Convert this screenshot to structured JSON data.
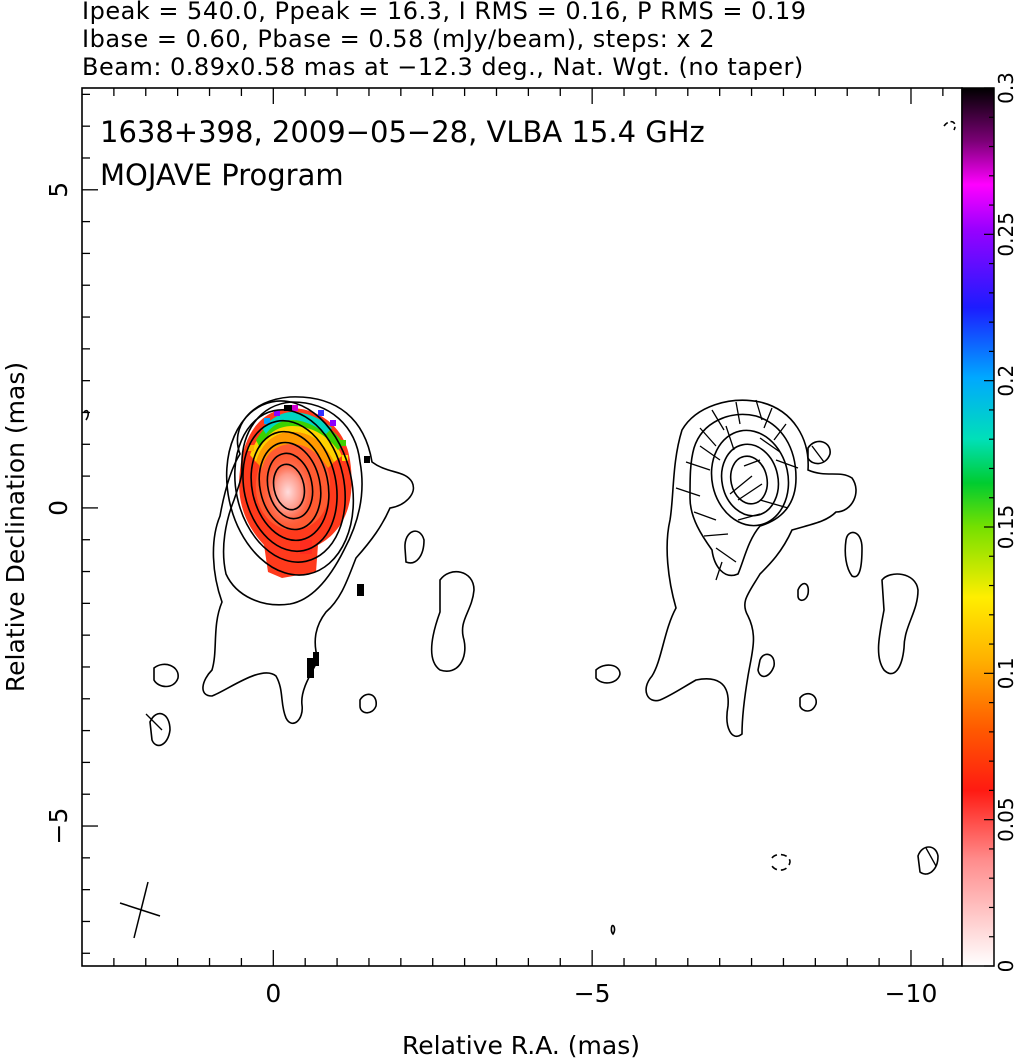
{
  "header": {
    "line1": "Ipeak = 540.0, Ppeak = 16.3, I RMS = 0.16, P RMS = 0.19",
    "line2": "Ibase = 0.60, Pbase = 0.58 (mJy/beam), steps: x 2",
    "line3": "Beam: 0.89x0.58 mas at −12.3 deg., Nat. Wgt. (no taper)"
  },
  "chart_data": {
    "type": "heatmap",
    "title": "1638+398, 2009−05−28, VLBA 15.4 GHz",
    "subtitle": "MOJAVE Program",
    "xlabel": "Relative R.A. (mas)",
    "ylabel": "Relative Declination (mas)",
    "xlim": [
      3.0,
      -10.8
    ],
    "ylim": [
      -7.2,
      6.6
    ],
    "x_ticks": [
      {
        "v": 0,
        "label": "0"
      },
      {
        "v": -5,
        "label": "−5"
      },
      {
        "v": -10,
        "label": "−10"
      }
    ],
    "y_ticks": [
      {
        "v": 5,
        "label": "5"
      },
      {
        "v": 0,
        "label": "0"
      },
      {
        "v": -5,
        "label": "−5"
      }
    ],
    "colorbar": {
      "range": [
        0,
        0.3
      ],
      "ticks": [
        {
          "v": 0,
          "label": "0"
        },
        {
          "v": 0.05,
          "label": "0.05"
        },
        {
          "v": 0.1,
          "label": "0.1"
        },
        {
          "v": 0.15,
          "label": "0.15"
        },
        {
          "v": 0.2,
          "label": "0.2"
        },
        {
          "v": 0.25,
          "label": "0.25"
        },
        {
          "v": 0.3,
          "label": "0.3"
        }
      ]
    },
    "fractional_polarization": [
      {
        "x": 0.15,
        "y": 1.45,
        "v": 0.29
      },
      {
        "x": 0.35,
        "y": 1.4,
        "v": 0.27
      },
      {
        "x": -0.05,
        "y": 1.38,
        "v": 0.26
      },
      {
        "x": 0.55,
        "y": 1.3,
        "v": 0.24
      },
      {
        "x": 0.8,
        "y": 1.2,
        "v": 0.19
      },
      {
        "x": -0.2,
        "y": 1.2,
        "v": 0.2
      },
      {
        "x": 1.05,
        "y": 1.05,
        "v": 0.16
      },
      {
        "x": 0.2,
        "y": 1.15,
        "v": 0.17
      },
      {
        "x": -0.35,
        "y": 1.0,
        "v": 0.16
      },
      {
        "x": 0.5,
        "y": 1.0,
        "v": 0.14
      },
      {
        "x": 1.15,
        "y": 0.8,
        "v": 0.12
      },
      {
        "x": 0.25,
        "y": 0.05,
        "v": 0.01
      },
      {
        "x": 0.2,
        "y": -0.4,
        "v": 0.02
      },
      {
        "x": 0.5,
        "y": -0.9,
        "v": 0.045
      },
      {
        "x": 0.3,
        "y": -1.05,
        "v": 0.05
      },
      {
        "x": -0.2,
        "y": 0.8,
        "v": 0.07
      },
      {
        "x": 0.9,
        "y": 0.6,
        "v": 0.07
      },
      {
        "x": -0.4,
        "y": 0.0,
        "v": 0.055
      },
      {
        "x": 0.9,
        "y": -0.2,
        "v": 0.055
      }
    ],
    "colors": {
      "frame": "#000000",
      "background": "#ffffff"
    }
  }
}
